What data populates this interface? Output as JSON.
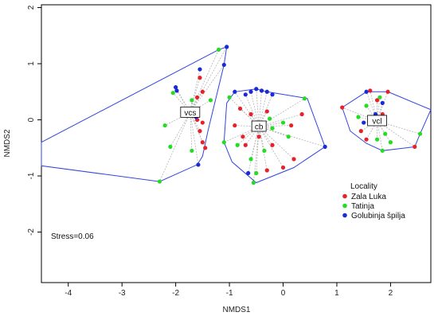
{
  "chart_data": {
    "type": "scatter",
    "xlabel": "NMDS1",
    "ylabel": "NMDS2",
    "xlim": [
      -4.5,
      2.75
    ],
    "ylim": [
      -2.9,
      2.05
    ],
    "x_ticks": [
      -4,
      -3,
      -2,
      -1,
      0,
      1,
      2
    ],
    "y_ticks": [
      -2,
      -1,
      0,
      1,
      2
    ],
    "annotation": "Stress=0.06",
    "legend": {
      "title": "Locality",
      "position": "right"
    },
    "colors": {
      "hull": "#3344dd",
      "spider": "#b5b5b5",
      "plot_frame": "#000000"
    },
    "series": [
      {
        "name": "Zala Luka",
        "color": "#e8202a"
      },
      {
        "name": "Tatinja",
        "color": "#22dd22"
      },
      {
        "name": "Golubinja špilja",
        "color": "#1a2ad6"
      }
    ],
    "groups": [
      {
        "label": "vcs",
        "centroid": [
          -1.73,
          0.13
        ],
        "hull": [
          [
            -4.5,
            -0.4
          ],
          [
            -1.2,
            1.25
          ],
          [
            -1.05,
            1.3
          ],
          [
            -1.1,
            0.98
          ],
          [
            -1.4,
            -0.2
          ],
          [
            -1.5,
            -0.65
          ],
          [
            -1.6,
            -0.8
          ],
          [
            -2.3,
            -1.1
          ],
          [
            -4.5,
            -0.82
          ]
        ],
        "points": [
          [
            -1.55,
            0.75,
            "Zala Luka"
          ],
          [
            -1.5,
            0.5,
            "Zala Luka"
          ],
          [
            -1.6,
            0.0,
            "Zala Luka"
          ],
          [
            -1.55,
            -0.2,
            "Zala Luka"
          ],
          [
            -1.5,
            -0.4,
            "Zala Luka"
          ],
          [
            -1.45,
            -0.5,
            "Zala Luka"
          ],
          [
            -1.6,
            0.4,
            "Zala Luka"
          ],
          [
            -1.5,
            -0.05,
            "Zala Luka"
          ],
          [
            -2.05,
            0.48,
            "Tatinja"
          ],
          [
            -1.35,
            0.35,
            "Tatinja"
          ],
          [
            -2.2,
            -0.1,
            "Tatinja"
          ],
          [
            -2.1,
            -0.48,
            "Tatinja"
          ],
          [
            -1.7,
            -0.55,
            "Tatinja"
          ],
          [
            -1.2,
            1.25,
            "Tatinja"
          ],
          [
            -2.3,
            -1.1,
            "Tatinja"
          ],
          [
            -1.7,
            0.35,
            "Tatinja"
          ],
          [
            -1.05,
            1.3,
            "Golubinja špilja"
          ],
          [
            -1.55,
            0.9,
            "Golubinja špilja"
          ],
          [
            -1.1,
            0.98,
            "Golubinja špilja"
          ],
          [
            -2.0,
            0.58,
            "Golubinja špilja"
          ],
          [
            -1.62,
            0.05,
            "Golubinja špilja"
          ],
          [
            -1.58,
            -0.8,
            "Golubinja špilja"
          ],
          [
            -1.98,
            0.52,
            "Golubinja špilja"
          ]
        ]
      },
      {
        "label": "cb",
        "centroid": [
          -0.45,
          -0.12
        ],
        "hull": [
          [
            -1.05,
            0.3
          ],
          [
            -0.9,
            0.5
          ],
          [
            -0.5,
            0.55
          ],
          [
            -0.3,
            0.5
          ],
          [
            0.45,
            0.38
          ],
          [
            0.78,
            -0.48
          ],
          [
            0.2,
            -0.85
          ],
          [
            -0.5,
            -1.12
          ],
          [
            -0.95,
            -0.75
          ],
          [
            -1.1,
            -0.4
          ]
        ],
        "points": [
          [
            -0.8,
            0.2,
            "Zala Luka"
          ],
          [
            -0.5,
            -0.05,
            "Zala Luka"
          ],
          [
            -0.3,
            0.15,
            "Zala Luka"
          ],
          [
            -0.75,
            -0.3,
            "Zala Luka"
          ],
          [
            -0.2,
            -0.45,
            "Zala Luka"
          ],
          [
            0.15,
            -0.1,
            "Zala Luka"
          ],
          [
            0.2,
            -0.7,
            "Zala Luka"
          ],
          [
            -0.3,
            -0.9,
            "Zala Luka"
          ],
          [
            -0.9,
            -0.1,
            "Zala Luka"
          ],
          [
            0.35,
            0.1,
            "Zala Luka"
          ],
          [
            -0.6,
            0.1,
            "Zala Luka"
          ],
          [
            0.0,
            -0.85,
            "Zala Luka"
          ],
          [
            -0.7,
            -0.45,
            "Zala Luka"
          ],
          [
            -0.45,
            -0.3,
            "Zala Luka"
          ],
          [
            -0.85,
            -0.45,
            "Tatinja"
          ],
          [
            -0.5,
            -0.95,
            "Tatinja"
          ],
          [
            -0.55,
            -1.12,
            "Tatinja"
          ],
          [
            0.0,
            -0.05,
            "Tatinja"
          ],
          [
            -0.2,
            -0.15,
            "Tatinja"
          ],
          [
            0.4,
            0.38,
            "Tatinja"
          ],
          [
            -1.0,
            0.4,
            "Tatinja"
          ],
          [
            -1.1,
            -0.4,
            "Tatinja"
          ],
          [
            -0.35,
            -0.55,
            "Tatinja"
          ],
          [
            0.1,
            -0.3,
            "Tatinja"
          ],
          [
            -0.6,
            -0.7,
            "Tatinja"
          ],
          [
            -0.25,
            0.02,
            "Tatinja"
          ],
          [
            -0.9,
            0.5,
            "Golubinja špilja"
          ],
          [
            -0.6,
            0.5,
            "Golubinja špilja"
          ],
          [
            -0.5,
            0.55,
            "Golubinja špilja"
          ],
          [
            -0.3,
            0.5,
            "Golubinja špilja"
          ],
          [
            0.78,
            -0.48,
            "Golubinja špilja"
          ],
          [
            -0.65,
            -0.95,
            "Golubinja špilja"
          ],
          [
            -0.4,
            0.52,
            "Golubinja špilja"
          ],
          [
            -0.7,
            0.45,
            "Golubinja špilja"
          ],
          [
            -0.2,
            0.45,
            "Golubinja špilja"
          ]
        ]
      },
      {
        "label": "vcl",
        "centroid": [
          1.75,
          -0.02
        ],
        "hull": [
          [
            1.1,
            0.22
          ],
          [
            1.55,
            0.5
          ],
          [
            1.95,
            0.5
          ],
          [
            2.75,
            0.18
          ],
          [
            2.55,
            -0.25
          ],
          [
            2.45,
            -0.48
          ],
          [
            1.85,
            -0.55
          ],
          [
            1.55,
            -0.42
          ],
          [
            1.25,
            -0.2
          ]
        ],
        "points": [
          [
            1.62,
            0.52,
            "Zala Luka"
          ],
          [
            1.1,
            0.22,
            "Zala Luka"
          ],
          [
            1.95,
            0.5,
            "Zala Luka"
          ],
          [
            1.45,
            -0.2,
            "Zala Luka"
          ],
          [
            2.45,
            -0.48,
            "Zala Luka"
          ],
          [
            1.75,
            0.35,
            "Zala Luka"
          ],
          [
            1.55,
            -0.35,
            "Zala Luka"
          ],
          [
            1.85,
            0.1,
            "Zala Luka"
          ],
          [
            1.65,
            0.05,
            "Tatinja"
          ],
          [
            1.9,
            -0.25,
            "Tatinja"
          ],
          [
            2.55,
            -0.25,
            "Tatinja"
          ],
          [
            1.55,
            0.25,
            "Tatinja"
          ],
          [
            1.85,
            -0.55,
            "Tatinja"
          ],
          [
            1.4,
            0.05,
            "Tatinja"
          ],
          [
            1.75,
            -0.35,
            "Tatinja"
          ],
          [
            2.0,
            -0.4,
            "Tatinja"
          ],
          [
            1.8,
            0.4,
            "Tatinja"
          ],
          [
            1.55,
            0.5,
            "Golubinja špilja"
          ],
          [
            1.72,
            0.1,
            "Golubinja špilja"
          ],
          [
            1.5,
            -0.05,
            "Golubinja špilja"
          ],
          [
            1.8,
            0.02,
            "Golubinja špilja"
          ],
          [
            1.85,
            0.3,
            "Golubinja špilja"
          ]
        ]
      }
    ]
  }
}
